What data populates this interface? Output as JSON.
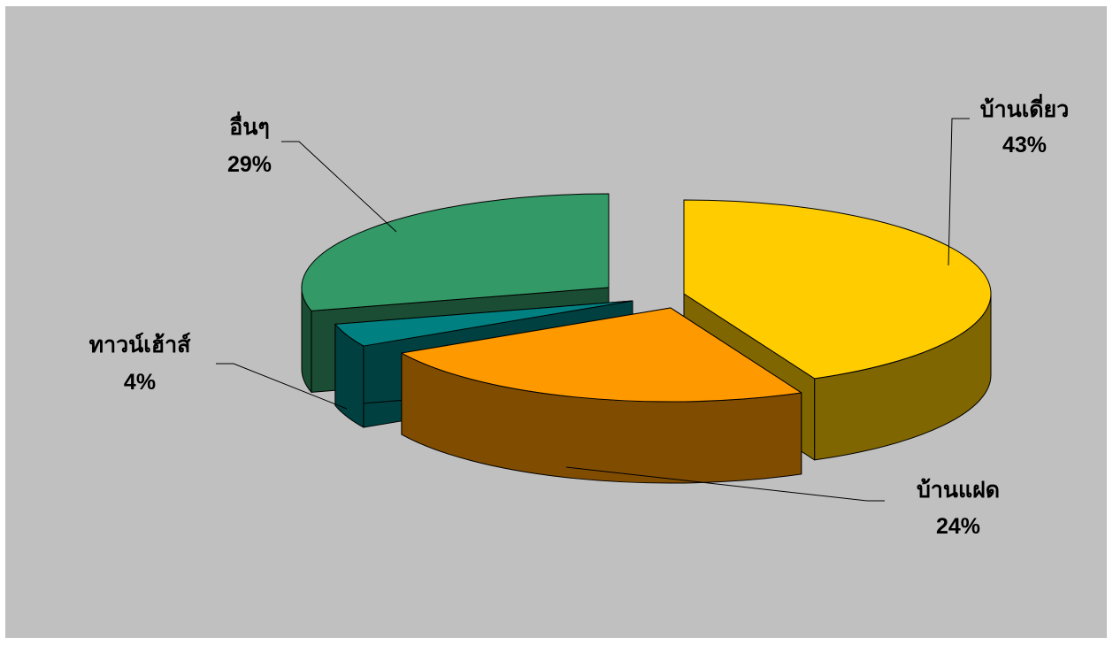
{
  "chart_data": {
    "type": "pie",
    "style": "3d-exploded",
    "title": "",
    "slices": [
      {
        "label": "บ้านเดี่ยว",
        "value": 43,
        "value_label": "43%",
        "color": "#ffcc00",
        "side_color": "#806600"
      },
      {
        "label": "บ้านแฝด",
        "value": 24,
        "value_label": "24%",
        "color": "#ff9900",
        "side_color": "#804c00"
      },
      {
        "label": "ทาวน์เฮ้าส์",
        "value": 4,
        "value_label": "4%",
        "color": "#008080",
        "side_color": "#004040"
      },
      {
        "label": "อื่นๆ",
        "value": 29,
        "value_label": "29%",
        "color": "#339966",
        "side_color": "#1a4d33"
      }
    ],
    "background": "#c0c0c0",
    "legend": "none"
  }
}
